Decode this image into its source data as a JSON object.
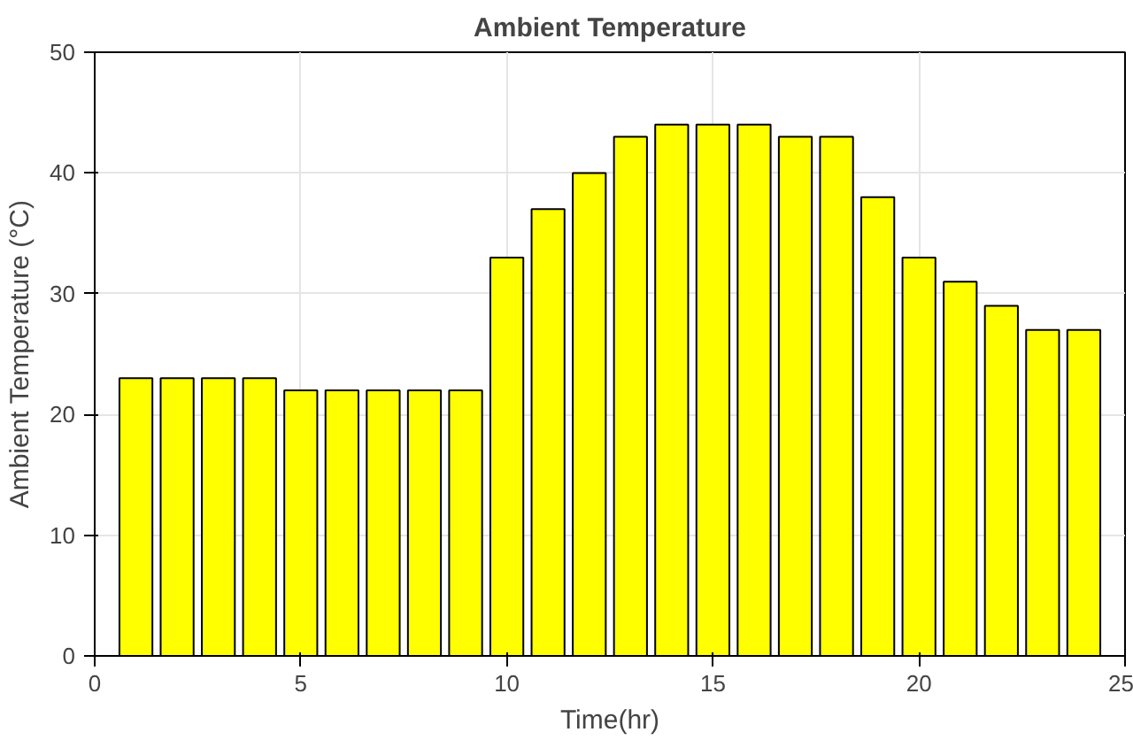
{
  "chart_data": {
    "type": "bar",
    "title": "Ambient Temperature",
    "xlabel": "Time(hr)",
    "ylabel": "Ambient Temperature (°C)",
    "x": [
      1,
      2,
      3,
      4,
      5,
      6,
      7,
      8,
      9,
      10,
      11,
      12,
      13,
      14,
      15,
      16,
      17,
      18,
      19,
      20,
      21,
      22,
      23,
      24
    ],
    "values": [
      23,
      23,
      23,
      23,
      22,
      22,
      22,
      22,
      22,
      33,
      37,
      40,
      43,
      44,
      44,
      44,
      43,
      43,
      38,
      33,
      31,
      29,
      27,
      27
    ],
    "color": "#ffff00",
    "xlim": [
      0,
      25
    ],
    "xticks": [
      0,
      5,
      10,
      15,
      20,
      25
    ],
    "ylim": [
      0,
      50
    ],
    "yticks": [
      0,
      10,
      20,
      30,
      40,
      50
    ],
    "grid": true
  }
}
